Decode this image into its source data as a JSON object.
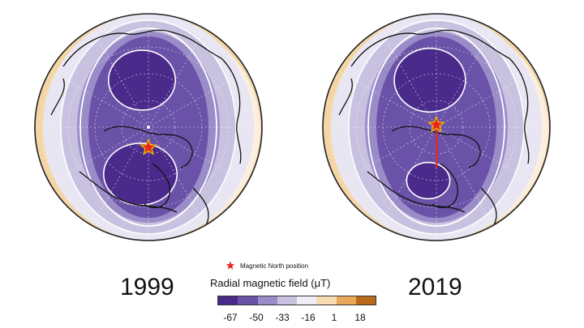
{
  "panels": [
    {
      "year": "1999",
      "pole": {
        "x": 0.0,
        "y": -0.18
      },
      "lobe_top_r": 0.31,
      "lobe_bottom_r": 0.34
    },
    {
      "year": "2019",
      "pole": {
        "x": 0.0,
        "y": 0.02
      },
      "lobe_top_r": 0.33,
      "lobe_bottom_r": 0.2
    }
  ],
  "legend": {
    "marker_label": "Magnetic North position",
    "title": "Radial magnetic field (μT)",
    "ticks": [
      "-67",
      "-50",
      "-33",
      "-16",
      "1",
      "18"
    ],
    "colors": [
      "#4a2a8a",
      "#6a52a8",
      "#9a8cc8",
      "#c8c2e0",
      "#f0eef6",
      "#f6dcb0",
      "#e8a85a",
      "#b86a1a"
    ]
  },
  "colors": {
    "deep_purple": "#4a2a8a",
    "mid_purple": "#6a52a8",
    "light_purple": "#9a8cc8",
    "pale_purple": "#c8c2e0",
    "star": "#e8251c",
    "star_outline": "#f6c200"
  }
}
